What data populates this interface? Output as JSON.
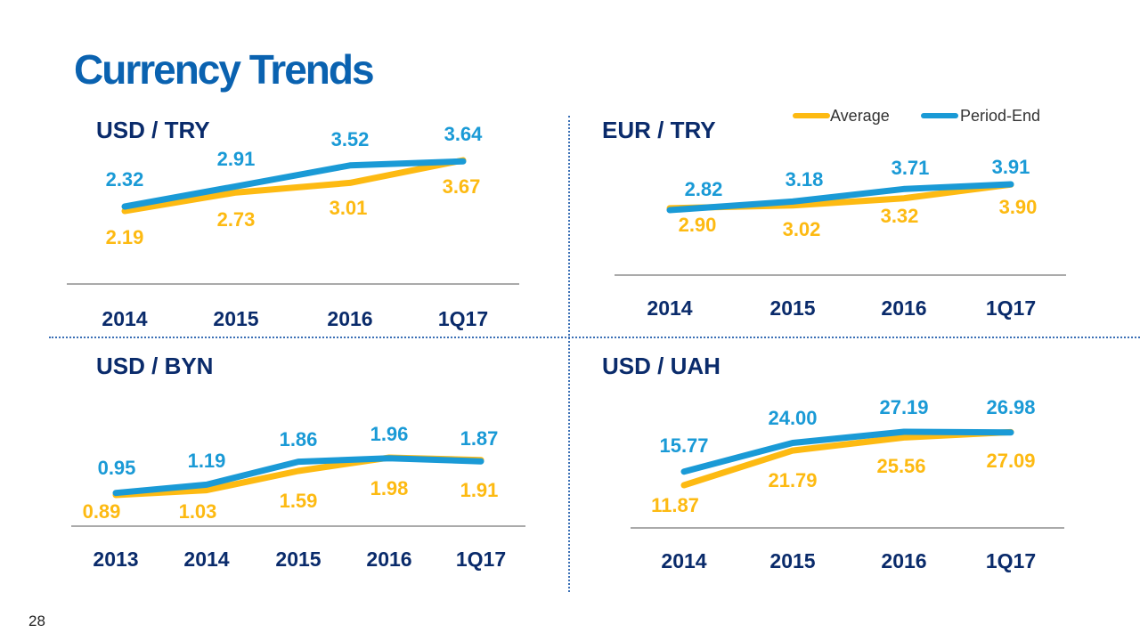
{
  "page": {
    "title": "Currency Trends",
    "page_number": "28"
  },
  "colors": {
    "average": "#FDBA12",
    "period_end": "#1A9AD6",
    "title": "#0A62B0",
    "labels": "#0A2B6B"
  },
  "legend": {
    "average": "Average",
    "period_end": "Period-End"
  },
  "chart_data": [
    {
      "type": "line",
      "title": "USD / TRY",
      "categories": [
        "2014",
        "2015",
        "2016",
        "1Q17"
      ],
      "series": [
        {
          "name": "Average",
          "values": [
            2.19,
            2.73,
            3.01,
            3.67
          ]
        },
        {
          "name": "Period-End",
          "values": [
            2.32,
            2.91,
            3.52,
            3.64
          ]
        }
      ]
    },
    {
      "type": "line",
      "title": "EUR / TRY",
      "categories": [
        "2014",
        "2015",
        "2016",
        "1Q17"
      ],
      "series": [
        {
          "name": "Average",
          "values": [
            2.9,
            3.02,
            3.32,
            3.9
          ]
        },
        {
          "name": "Period-End",
          "values": [
            2.82,
            3.18,
            3.71,
            3.91
          ]
        }
      ]
    },
    {
      "type": "line",
      "title": "USD / BYN",
      "categories": [
        "2013",
        "2014",
        "2015",
        "2016",
        "1Q17"
      ],
      "series": [
        {
          "name": "Average",
          "values": [
            0.89,
            1.03,
            1.59,
            1.98,
            1.91
          ]
        },
        {
          "name": "Period-End",
          "values": [
            0.95,
            1.19,
            1.86,
            1.96,
            1.87
          ]
        }
      ]
    },
    {
      "type": "line",
      "title": "USD / UAH",
      "categories": [
        "2014",
        "2015",
        "2016",
        "1Q17"
      ],
      "series": [
        {
          "name": "Average",
          "values": [
            11.87,
            21.79,
            25.56,
            27.09
          ]
        },
        {
          "name": "Period-End",
          "values": [
            15.77,
            24.0,
            27.19,
            26.98
          ]
        }
      ]
    }
  ]
}
